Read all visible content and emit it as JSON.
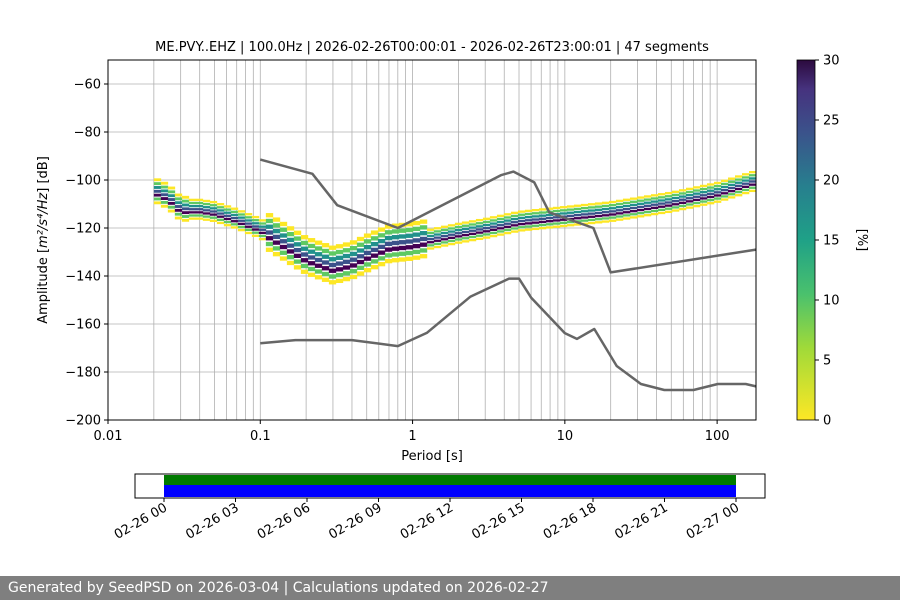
{
  "chart_data": {
    "type": "heatmap",
    "title": "ME.PVY..EHZ | 100.0Hz | 2026-02-26T00:00:01 - 2026-02-26T23:00:01 | 47 segments",
    "xlabel": "Period [s]",
    "ylabel_prefix": "Amplitude [",
    "ylabel_math": "m²/s⁴/Hz",
    "ylabel_suffix": "] [dB]",
    "x_scale": "log",
    "xlim": [
      0.01,
      180
    ],
    "ylim": [
      -200,
      -50
    ],
    "x_ticks": [
      {
        "value": 0.01,
        "label": "0.01"
      },
      {
        "value": 0.1,
        "label": "0.1"
      },
      {
        "value": 1,
        "label": "1"
      },
      {
        "value": 10,
        "label": "10"
      },
      {
        "value": 100,
        "label": "100"
      }
    ],
    "y_ticks": [
      {
        "value": -60,
        "label": "−60"
      },
      {
        "value": -80,
        "label": "−80"
      },
      {
        "value": -100,
        "label": "−100"
      },
      {
        "value": -120,
        "label": "−120"
      },
      {
        "value": -140,
        "label": "−140"
      },
      {
        "value": -160,
        "label": "−160"
      },
      {
        "value": -180,
        "label": "−180"
      },
      {
        "value": -200,
        "label": "−200"
      }
    ],
    "grid": "on",
    "psd_median": [
      {
        "period": 0.02,
        "db": -105
      },
      {
        "period": 0.025,
        "db": -108
      },
      {
        "period": 0.03,
        "db": -113
      },
      {
        "period": 0.04,
        "db": -113
      },
      {
        "period": 0.05,
        "db": -114
      },
      {
        "period": 0.07,
        "db": -117
      },
      {
        "period": 0.1,
        "db": -121
      },
      {
        "period": 0.15,
        "db": -128
      },
      {
        "period": 0.2,
        "db": -133
      },
      {
        "period": 0.3,
        "db": -137
      },
      {
        "period": 0.4,
        "db": -135
      },
      {
        "period": 0.5,
        "db": -132
      },
      {
        "period": 0.7,
        "db": -128
      },
      {
        "period": 1,
        "db": -127
      },
      {
        "period": 2,
        "db": -123
      },
      {
        "period": 3,
        "db": -121
      },
      {
        "period": 5,
        "db": -118
      },
      {
        "period": 10,
        "db": -116
      },
      {
        "period": 20,
        "db": -114
      },
      {
        "period": 50,
        "db": -110
      },
      {
        "period": 100,
        "db": -106
      },
      {
        "period": 180,
        "db": -101
      }
    ],
    "nhnm": [
      {
        "period": 0.1,
        "db": -91.5
      },
      {
        "period": 0.22,
        "db": -97.4
      },
      {
        "period": 0.32,
        "db": -110.5
      },
      {
        "period": 0.8,
        "db": -120
      },
      {
        "period": 3.8,
        "db": -98
      },
      {
        "period": 4.6,
        "db": -96.5
      },
      {
        "period": 6.3,
        "db": -101
      },
      {
        "period": 7.9,
        "db": -113.5
      },
      {
        "period": 15.4,
        "db": -120
      },
      {
        "period": 20,
        "db": -138.5
      },
      {
        "period": 180,
        "db": -129
      }
    ],
    "nlnm": [
      {
        "period": 0.1,
        "db": -168
      },
      {
        "period": 0.17,
        "db": -166.7
      },
      {
        "period": 0.4,
        "db": -166.7
      },
      {
        "period": 0.8,
        "db": -169.2
      },
      {
        "period": 1.24,
        "db": -163.7
      },
      {
        "period": 2.4,
        "db": -148.6
      },
      {
        "period": 4.3,
        "db": -141.1
      },
      {
        "period": 5,
        "db": -141.1
      },
      {
        "period": 6,
        "db": -149
      },
      {
        "period": 10,
        "db": -163.8
      },
      {
        "period": 12,
        "db": -166.2
      },
      {
        "period": 15.6,
        "db": -162.1
      },
      {
        "period": 21.9,
        "db": -177.5
      },
      {
        "period": 31.6,
        "db": -185
      },
      {
        "period": 45,
        "db": -187.5
      },
      {
        "period": 70,
        "db": -187.5
      },
      {
        "period": 101,
        "db": -185
      },
      {
        "period": 154,
        "db": -185
      },
      {
        "period": 180,
        "db": -186
      }
    ],
    "colorbar": {
      "label": "[%]",
      "range": [
        0,
        30
      ],
      "ticks": [
        {
          "value": 0,
          "label": "0"
        },
        {
          "value": 5,
          "label": "5"
        },
        {
          "value": 10,
          "label": "10"
        },
        {
          "value": 15,
          "label": "15"
        },
        {
          "value": 20,
          "label": "20"
        },
        {
          "value": 25,
          "label": "25"
        },
        {
          "value": 30,
          "label": "30"
        }
      ],
      "colors": [
        "#fde725",
        "#5ec962",
        "#21918c",
        "#3b528b",
        "#440154",
        "#2c0a3e"
      ]
    },
    "timeline": {
      "ticks": [
        "02-26 00",
        "02-26 03",
        "02-26 06",
        "02-26 09",
        "02-26 12",
        "02-26 15",
        "02-26 18",
        "02-26 21",
        "02-27 00"
      ],
      "start_hour": 0,
      "end_hour": 24,
      "coverage_start_hour": 0,
      "coverage_end_hour": 24,
      "data_color": "#0000ff",
      "used_color": "#007a00"
    }
  },
  "footer": {
    "text": "Generated by SeedPSD on 2026-03-04 | Calculations updated on 2026-02-27"
  }
}
